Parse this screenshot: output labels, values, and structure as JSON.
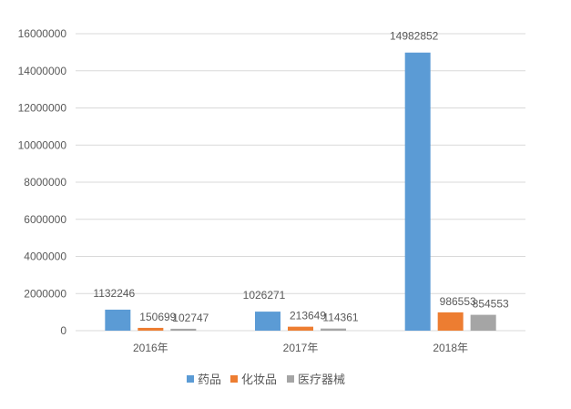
{
  "chart_data": {
    "type": "bar",
    "title": "",
    "xlabel": "",
    "ylabel": "",
    "categories": [
      "2016年",
      "2017年",
      "2018年"
    ],
    "series": [
      {
        "name": "药品",
        "values": [
          1132246,
          1026271,
          14982852
        ],
        "color": "#5B9BD5"
      },
      {
        "name": "化妆品",
        "values": [
          150699,
          213649,
          986553
        ],
        "color": "#ED7D31"
      },
      {
        "name": "医疗器械",
        "values": [
          102747,
          114361,
          854553
        ],
        "color": "#A5A5A5"
      }
    ],
    "ylim": [
      0,
      16000000
    ],
    "yticks": [
      0,
      2000000,
      4000000,
      6000000,
      8000000,
      10000000,
      12000000,
      14000000,
      16000000
    ],
    "grid": true,
    "legend": "bottom",
    "data_labels": true
  }
}
